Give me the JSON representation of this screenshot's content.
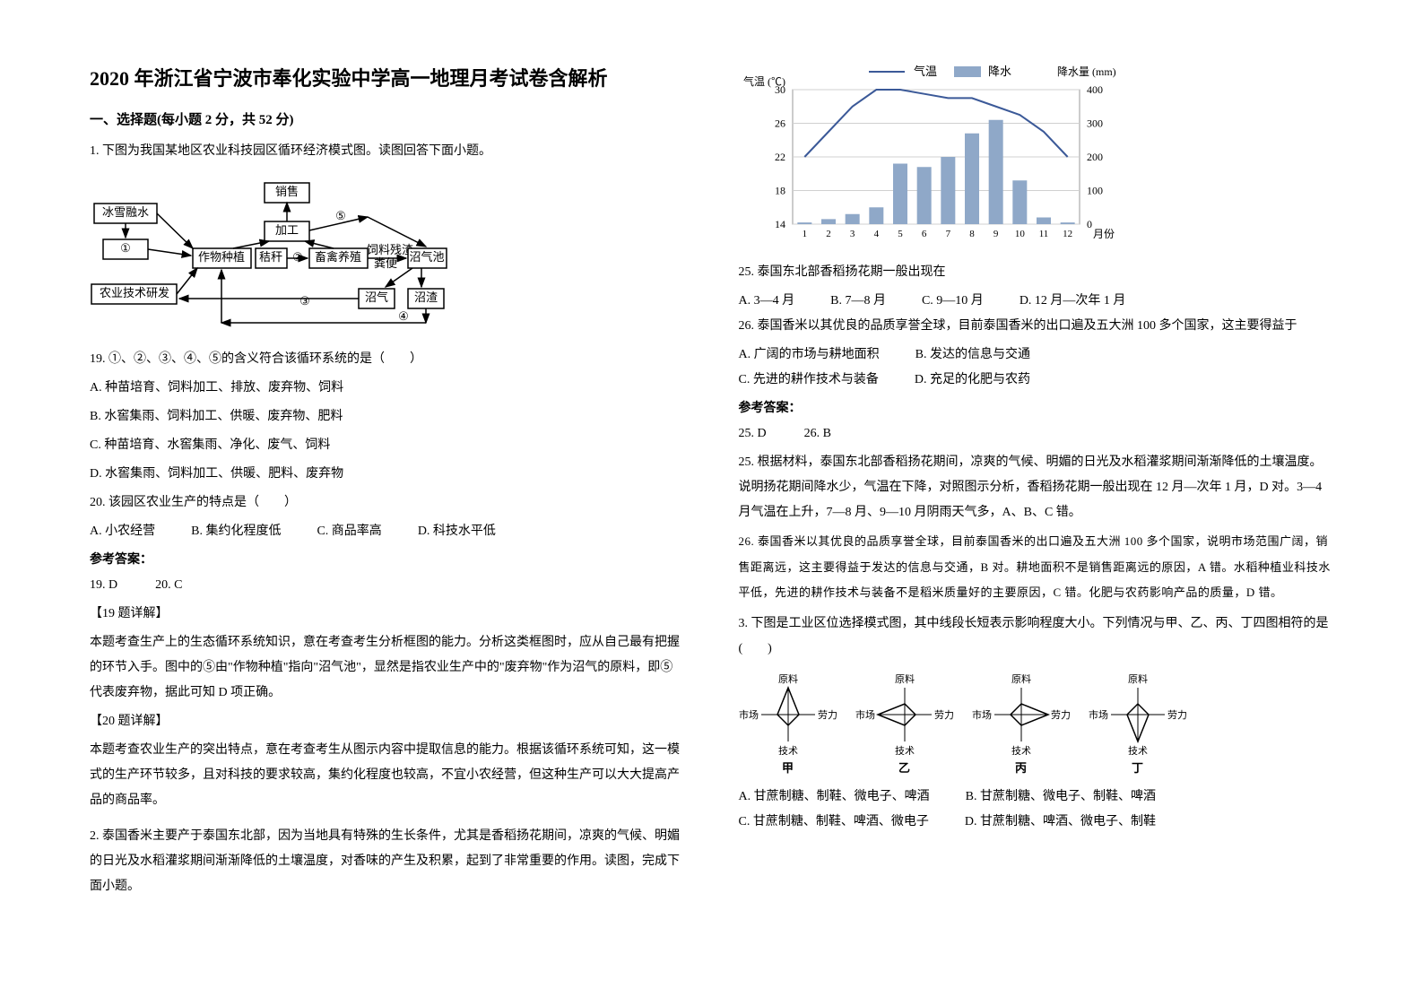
{
  "title": "2020 年浙江省宁波市奉化实验中学高一地理月考试卷含解析",
  "section1": "一、选择题(每小题 2 分，共 52 分)",
  "q1_intro": "1. 下图为我国某地区农业科技园区循环经济模式图。读图回答下面小题。",
  "flow": {
    "boxes": {
      "snowmelt": "冰雪融水",
      "circle1": "①",
      "tech": "农业技术研发",
      "crop": "作物种植",
      "straw": "秸秆",
      "circle2": "②",
      "livestock": "畜禽养殖",
      "residue": "饲料残渣",
      "manure": "粪便",
      "biogas_pool": "沼气池",
      "biogas": "沼气",
      "slag": "沼渣",
      "process": "加工",
      "sale": "销售",
      "circle3": "③",
      "circle4": "④",
      "circle5": "⑤"
    }
  },
  "q19": "19. ①、②、③、④、⑤的含义符合该循环系统的是（　　）",
  "q19_a": "A. 种苗培育、饲料加工、排放、废弃物、饲料",
  "q19_b": "B. 水窖集雨、饲料加工、供暖、废弃物、肥料",
  "q19_c": "C. 种苗培育、水窖集雨、净化、废气、饲料",
  "q19_d": "D. 水窖集雨、饲料加工、供暖、肥料、废弃物",
  "q20": "20. 该园区农业生产的特点是（　　）",
  "q20_a": "A. 小农经营",
  "q20_b": "B. 集约化程度低",
  "q20_c": "C. 商品率高",
  "q20_d": "D. 科技水平低",
  "ans_label": "参考答案：",
  "ans_1920": "19. D　　　20. C",
  "exp19_header": "【19 题详解】",
  "exp19_text": "本题考查生产上的生态循环系统知识，意在考查考生分析框图的能力。分析这类框图时，应从自己最有把握的环节入手。图中的⑤由\"作物种植\"指向\"沼气池\"，显然是指农业生产中的\"废弃物\"作为沼气的原料，即⑤代表废弃物，据此可知 D 项正确。",
  "exp20_header": "【20 题详解】",
  "exp20_text": "本题考查农业生产的突出特点，意在考查考生从图示内容中提取信息的能力。根据该循环系统可知，这一模式的生产环节较多，且对科技的要求较高，集约化程度也较高，不宜小农经营，但这种生产可以大大提高产品的商品率。",
  "q2_intro": "2. 泰国香米主要产于泰国东北部，因为当地具有特殊的生长条件，尤其是香稻扬花期间，凉爽的气候、明媚的日光及水稻灌浆期间渐渐降低的土壤温度，对香味的产生及积累，起到了非常重要的作用。读图，完成下面小题。",
  "climate": {
    "legend_temp": "气温",
    "legend_precip": "降水",
    "ylabel_left": "气温 (℃)",
    "ylabel_right": "降水量 (mm)",
    "xlabel": "月份",
    "months": [
      "1",
      "2",
      "3",
      "4",
      "5",
      "6",
      "7",
      "8",
      "9",
      "10",
      "11",
      "12"
    ],
    "temp_ticks": [
      14,
      18,
      22,
      26,
      30
    ],
    "precip_ticks": [
      0,
      100,
      200,
      300,
      400
    ],
    "temp_values": [
      22,
      25,
      28,
      30,
      30,
      29.5,
      29,
      29,
      28,
      27,
      25,
      22
    ],
    "precip_values": [
      5,
      15,
      30,
      50,
      180,
      170,
      200,
      270,
      310,
      130,
      20,
      5
    ],
    "line_color": "#3b5998",
    "bar_color": "#8fa8c8",
    "grid_color": "#d0d0d0",
    "bg_color": "#ffffff"
  },
  "q25": "25. 泰国东北部香稻扬花期一般出现在",
  "q25_a": "A. 3—4 月",
  "q25_b": "B. 7—8 月",
  "q25_c": "C. 9—10 月",
  "q25_d": "D. 12 月—次年 1 月",
  "q26": "26. 泰国香米以其优良的品质享誉全球，目前泰国香米的出口遍及五大洲 100 多个国家，这主要得益于",
  "q26_a": "A. 广阔的市场与耕地面积",
  "q26_b": "B. 发达的信息与交通",
  "q26_c": "C. 先进的耕作技术与装备",
  "q26_d": "D. 充足的化肥与农药",
  "ans_2526": "25. D　　　26. B",
  "exp25": "25. 根据材料，泰国东北部香稻扬花期间，凉爽的气候、明媚的日光及水稻灌浆期间渐渐降低的土壤温度。说明扬花期间降水少，气温在下降，对照图示分析，香稻扬花期一般出现在 12 月—次年 1 月，D 对。3—4 月气温在上升，7—8 月、9—10 月阴雨天气多，A、B、C 错。",
  "exp26": "26. 泰国香米以其优良的品质享誉全球，目前泰国香米的出口遍及五大洲 100 多个国家，说明市场范围广阔，销售距离远，这主要得益于发达的信息与交通，B 对。耕地面积不是销售距离远的原因，A 错。水稻种植业科技水平低，先进的耕作技术与装备不是稻米质量好的主要原因，C 错。化肥与农药影响产品的质量，D 错。",
  "q3_intro": "3. 下图是工业区位选择模式图，其中线段长短表示影响程度大小。下列情况与甲、乙、丙、丁四图相符的是(　　)",
  "radar_labels": {
    "raw": "原料",
    "labor": "劳力",
    "tech": "技术",
    "market": "市场"
  },
  "radar_names": {
    "jia": "甲",
    "yi": "乙",
    "bing": "丙",
    "ding": "丁"
  },
  "radar_data": {
    "jia": {
      "raw": 1.0,
      "labor": 0.4,
      "tech": 0.4,
      "market": 0.4
    },
    "yi": {
      "raw": 0.4,
      "labor": 0.4,
      "tech": 0.4,
      "market": 1.0
    },
    "bing": {
      "raw": 0.4,
      "labor": 1.0,
      "tech": 0.4,
      "market": 0.4
    },
    "ding": {
      "raw": 0.4,
      "labor": 0.4,
      "tech": 1.0,
      "market": 0.4
    }
  },
  "q3_a": "A. 甘蔗制糖、制鞋、微电子、啤酒",
  "q3_b": "B. 甘蔗制糖、微电子、制鞋、啤酒",
  "q3_c": "C. 甘蔗制糖、制鞋、啤酒、微电子",
  "q3_d": "D. 甘蔗制糖、啤酒、微电子、制鞋"
}
